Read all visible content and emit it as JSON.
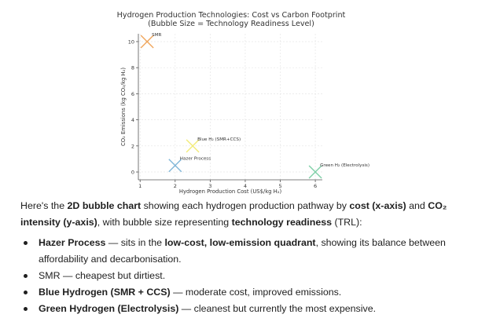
{
  "chart_data": {
    "type": "scatter",
    "title": "Hydrogen Production Technologies: Cost vs Carbon Footprint",
    "subtitle": "(Bubble Size = Technology Readiness Level)",
    "xlabel": "Hydrogen Production Cost (US$/kg H₂)",
    "ylabel": "CO₂ Emissions (kg CO₂/kg H₂)",
    "xlim": [
      0.95,
      6.2
    ],
    "ylim": [
      -0.6,
      10.6
    ],
    "xticks": [
      1,
      2,
      3,
      4,
      5,
      6
    ],
    "yticks": [
      0,
      2,
      4,
      6,
      8,
      10
    ],
    "grid": true,
    "points": [
      {
        "label": "SMR",
        "x": 1.2,
        "y": 10.0,
        "color": "#f0a55a"
      },
      {
        "label": "Blue H₂ (SMR+CCS)",
        "x": 2.5,
        "y": 2.0,
        "color": "#f3ec7a"
      },
      {
        "label": "Hazer Process",
        "x": 2.0,
        "y": 0.5,
        "color": "#7fb6d8"
      },
      {
        "label": "Green H₂ (Electrolysis)",
        "x": 6.0,
        "y": 0.0,
        "color": "#7fd0a8"
      }
    ]
  },
  "text": {
    "intro": [
      {
        "t": "Here's the ",
        "b": false
      },
      {
        "t": "2D bubble chart",
        "b": true
      },
      {
        "t": " showing each hydrogen production pathway by ",
        "b": false
      },
      {
        "t": "cost (x-axis)",
        "b": true
      },
      {
        "t": " and ",
        "b": false
      },
      {
        "t": "CO₂ intensity (y-axis)",
        "b": true
      },
      {
        "t": ", with bubble size representing ",
        "b": false
      },
      {
        "t": "technology readiness",
        "b": true
      },
      {
        "t": " (TRL):",
        "b": false
      }
    ],
    "bullets": [
      [
        {
          "t": "Hazer Process",
          "b": true
        },
        {
          "t": " — sits in the ",
          "b": false
        },
        {
          "t": "low-cost, low-emission quadrant",
          "b": true
        },
        {
          "t": ", showing its balance between affordability and decarbonisation.",
          "b": false
        }
      ],
      [
        {
          "t": "SMR",
          "b": false
        },
        {
          "t": " — cheapest but dirtiest.",
          "b": false
        }
      ],
      [
        {
          "t": "Blue Hydrogen (SMR + CCS)",
          "b": true
        },
        {
          "t": " — moderate cost, improved emissions.",
          "b": false
        }
      ],
      [
        {
          "t": "Green Hydrogen (Electrolysis)",
          "b": true
        },
        {
          "t": " — cleanest but currently the most expensive.",
          "b": false
        }
      ]
    ]
  }
}
